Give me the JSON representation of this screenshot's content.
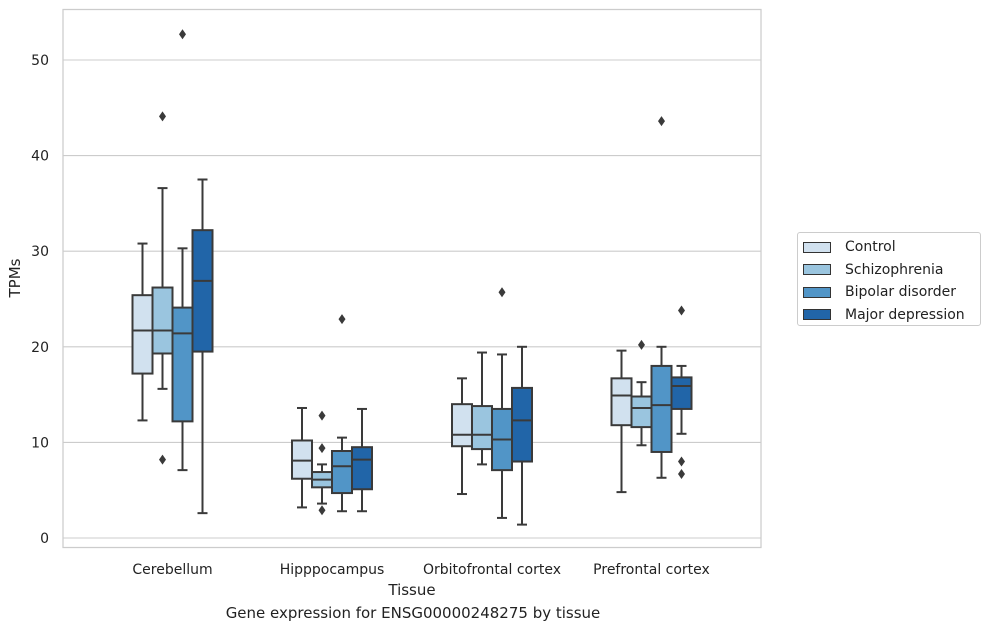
{
  "chart_data": {
    "type": "boxplot",
    "title": "",
    "xlabel": "Tissue",
    "ylabel": "TPMs",
    "caption": "Gene expression for ENSG00000248275 by tissue",
    "ylim": [
      -1,
      55
    ],
    "yticks": [
      0,
      10,
      20,
      30,
      40,
      50
    ],
    "grid": true,
    "legend_position": "right",
    "categories": [
      "Cerebellum",
      "Hipppocampus",
      "Orbitofrontal cortex",
      "Prefrontal cortex"
    ],
    "series": [
      {
        "name": "Control",
        "color": "#d1e1ef",
        "boxes": [
          {
            "whisker_low": 12.3,
            "q1": 17.2,
            "median": 21.7,
            "q3": 25.4,
            "whisker_high": 30.8,
            "outliers": []
          },
          {
            "whisker_low": 3.2,
            "q1": 6.2,
            "median": 8.1,
            "q3": 10.2,
            "whisker_high": 13.6,
            "outliers": []
          },
          {
            "whisker_low": 4.6,
            "q1": 9.6,
            "median": 10.8,
            "q3": 14.0,
            "whisker_high": 16.7,
            "outliers": []
          },
          {
            "whisker_low": 4.8,
            "q1": 11.8,
            "median": 14.9,
            "q3": 16.7,
            "whisker_high": 19.6,
            "outliers": []
          }
        ]
      },
      {
        "name": "Schizophrenia",
        "color": "#9ac5df",
        "boxes": [
          {
            "whisker_low": 15.6,
            "q1": 19.3,
            "median": 21.7,
            "q3": 26.2,
            "whisker_high": 36.6,
            "outliers": [
              8.2,
              44.1
            ]
          },
          {
            "whisker_low": 3.6,
            "q1": 5.3,
            "median": 6.1,
            "q3": 6.9,
            "whisker_high": 7.7,
            "outliers": [
              2.9,
              9.4,
              12.8
            ]
          },
          {
            "whisker_low": 7.7,
            "q1": 9.3,
            "median": 10.8,
            "q3": 13.8,
            "whisker_high": 19.4,
            "outliers": []
          },
          {
            "whisker_low": 9.7,
            "q1": 11.6,
            "median": 13.6,
            "q3": 14.8,
            "whisker_high": 16.3,
            "outliers": [
              20.2
            ]
          }
        ]
      },
      {
        "name": "Bipolar disorder",
        "color": "#5195c7",
        "boxes": [
          {
            "whisker_low": 7.1,
            "q1": 12.2,
            "median": 21.4,
            "q3": 24.1,
            "whisker_high": 30.3,
            "outliers": [
              52.7
            ]
          },
          {
            "whisker_low": 2.8,
            "q1": 4.7,
            "median": 7.5,
            "q3": 9.1,
            "whisker_high": 10.5,
            "outliers": [
              22.9
            ]
          },
          {
            "whisker_low": 2.1,
            "q1": 7.1,
            "median": 10.3,
            "q3": 13.5,
            "whisker_high": 19.2,
            "outliers": [
              25.7
            ]
          },
          {
            "whisker_low": 6.3,
            "q1": 9.0,
            "median": 13.9,
            "q3": 18.0,
            "whisker_high": 20.0,
            "outliers": [
              43.6
            ]
          }
        ]
      },
      {
        "name": "Major depression",
        "color": "#2165a8",
        "boxes": [
          {
            "whisker_low": 2.6,
            "q1": 19.5,
            "median": 26.9,
            "q3": 32.2,
            "whisker_high": 37.5,
            "outliers": []
          },
          {
            "whisker_low": 2.8,
            "q1": 5.1,
            "median": 8.2,
            "q3": 9.5,
            "whisker_high": 13.5,
            "outliers": []
          },
          {
            "whisker_low": 1.4,
            "q1": 8.0,
            "median": 12.3,
            "q3": 15.7,
            "whisker_high": 20.0,
            "outliers": []
          },
          {
            "whisker_low": 10.9,
            "q1": 13.5,
            "median": 15.9,
            "q3": 16.8,
            "whisker_high": 18.0,
            "outliers": [
              6.7,
              8.0,
              23.8
            ]
          }
        ]
      }
    ]
  }
}
